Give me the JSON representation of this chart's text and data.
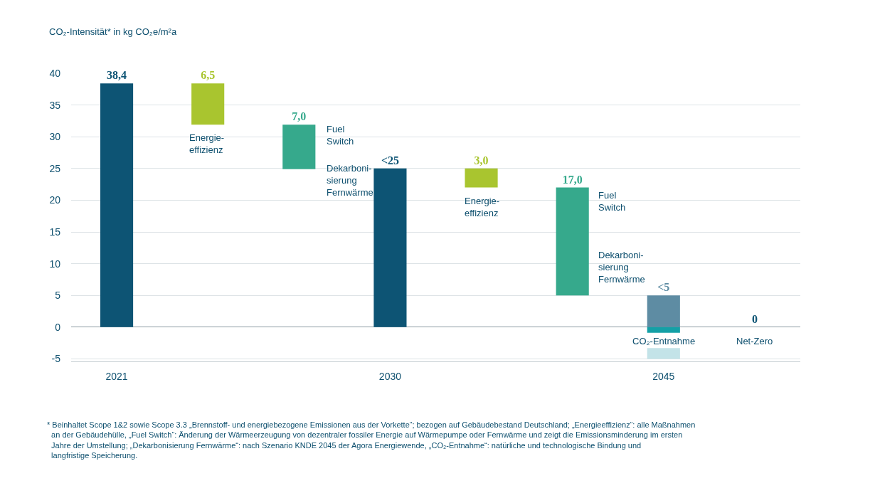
{
  "chart_data": {
    "type": "bar",
    "ylabel": "CO₂-Intensität* in kg CO₂e/m²a",
    "categories": [
      "2021",
      null,
      null,
      "2030",
      null,
      null,
      "2045",
      null
    ],
    "ylim": [
      -5.4,
      40
    ],
    "yticks": [
      -5,
      0,
      5,
      10,
      15,
      20,
      25,
      30,
      35,
      40
    ],
    "grid": "y",
    "series": [
      {
        "values": [
          38.4,
          6.5,
          7.0,
          25,
          3.0,
          17.0,
          5,
          0
        ],
        "base": [
          0,
          31.9,
          24.9,
          0,
          22,
          5,
          0,
          null
        ],
        "colors": [
          "#0d5474",
          "#a9c52f",
          "#36a98c",
          "#0d5474",
          "#a9c52f",
          "#36a98c",
          "#5e8ca3",
          "#0d5474"
        ],
        "value_labels": [
          "38,4",
          "6,5",
          "7,0",
          "<25",
          "3,0",
          "17,0",
          "<5",
          "0"
        ]
      },
      {
        "values": [
          null,
          null,
          null,
          null,
          null,
          null,
          -0.9,
          null
        ],
        "base": [
          null,
          null,
          null,
          null,
          null,
          null,
          0,
          null
        ],
        "color": "#14a0a6"
      },
      {
        "values": [
          null,
          null,
          null,
          null,
          null,
          null,
          1.7,
          null
        ],
        "base": [
          null,
          null,
          null,
          null,
          null,
          null,
          -5,
          null
        ],
        "color": "#c3e3e8"
      }
    ],
    "annotations": [
      "Energie-\neffizienz",
      "Fuel\nSwitch",
      "Dekarboni-\nsierung\nFernwärme",
      "Energie-\neffizienz",
      "Fuel\nSwitch",
      "Dekarboni-\nsierung\nFernwärme",
      "CO₂-Entnahme",
      "Net-Zero",
      "* Beinhaltet Scope 1&2 sowie Scope 3.3 „Brennstoff- und energiebezogene Emissionen aus der Vorkette“; bezogen auf Gebäudebestand Deutschland; „Energieeffizienz“: alle Maßnahmen\n  an der Gebäudehülle, „Fuel Switch“: Änderung der Wärmeerzeugung von dezentraler fossiler Energie auf Wärmepumpe oder Fernwärme und zeigt die Emissionsminderung im ersten\n  Jahre der Umstellung; „Dekarbonisierung Fernwärme“: nach Szenario KNDE 2045 der Agora Energiewende, „CO₂-Entnahme“: natürliche und technologische Bindung und\n  langfristige Speicherung."
    ]
  }
}
